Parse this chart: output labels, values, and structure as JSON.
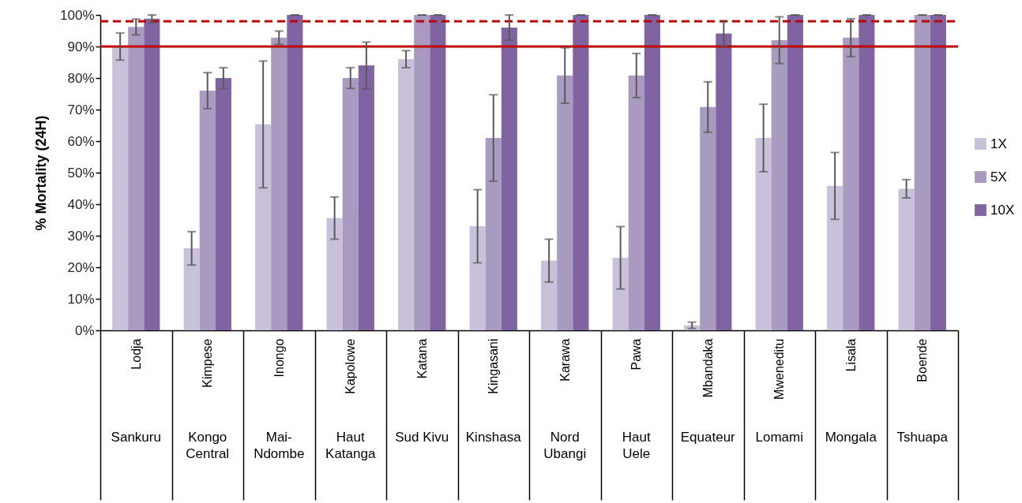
{
  "chart_data": {
    "type": "bar",
    "ylabel": "% Mortality (24H)",
    "categories": [
      "Lodja\nSankuru",
      "Kimpese\nKongo\nCentral",
      "Inongo\nMai-\nNdombe",
      "Kapolowe\nHaut\nKatanga",
      "Katana\nSud Kivu",
      "Kingasani\nKinshasa",
      "Karawa\nNord\nUbangi",
      "Pawa\nHaut\nUele",
      "Mbandaka\nEquateur",
      "Mweneditu\nLomami",
      "Lisala\nMongala",
      "Boende\nTshuapa"
    ],
    "series": [
      {
        "name": "1X",
        "color": "#c9c1d9",
        "values": [
          90.0,
          26,
          65.3,
          35.6,
          86.0,
          33,
          22.1,
          23.0,
          1.6,
          61.0,
          45.8,
          44.9
        ],
        "errors": [
          4.3,
          5.3,
          20.1,
          6.7,
          2.7,
          11.6,
          6.8,
          9.9,
          1.0,
          10.7,
          10.6,
          2.9
        ]
      },
      {
        "name": "5X",
        "color": "#a99bbf",
        "values": [
          96.2,
          76,
          92.8,
          80,
          100,
          61.0,
          80.8,
          80.8,
          70.8,
          92.0,
          92.8,
          100
        ],
        "errors": [
          2.5,
          5.7,
          2.1,
          3.3,
          0,
          13.7,
          8.8,
          7.0,
          8.0,
          7.4,
          6.0,
          0
        ]
      },
      {
        "name": "10X",
        "color": "#8064a2",
        "values": [
          98.8,
          80,
          100,
          84,
          100,
          96.0,
          100,
          100,
          94.1,
          100,
          100,
          100
        ],
        "errors": [
          1.2,
          3.3,
          0,
          7.4,
          0,
          4.0,
          0,
          0,
          4.0,
          0,
          0,
          0
        ]
      }
    ],
    "ylim": [
      0,
      100
    ],
    "yticks": [
      {
        "value": 0,
        "label": "0%"
      },
      {
        "value": 10,
        "label": "10%"
      },
      {
        "value": 20,
        "label": "20%"
      },
      {
        "value": 30,
        "label": "30%"
      },
      {
        "value": 40,
        "label": "40%"
      },
      {
        "value": 50,
        "label": "50%"
      },
      {
        "value": 60,
        "label": "60%"
      },
      {
        "value": 70,
        "label": "70%"
      },
      {
        "value": 80,
        "label": "80%"
      },
      {
        "value": 90,
        "label": "90%"
      },
      {
        "value": 100,
        "label": "100%"
      }
    ],
    "ref_lines": [
      {
        "axis": "y",
        "value": 90,
        "color": "#c00000",
        "line_style": "solid"
      },
      {
        "axis": "y",
        "value": 98,
        "color": "#c00000",
        "line_style": "dashed"
      }
    ],
    "legend": "right"
  }
}
